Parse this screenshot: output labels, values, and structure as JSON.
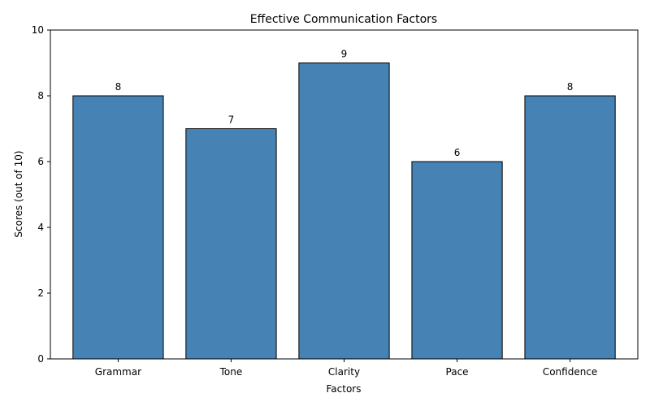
{
  "chart_data": {
    "type": "bar",
    "title": "Effective Communication Factors",
    "xlabel": "Factors",
    "ylabel": "Scores (out of 10)",
    "categories": [
      "Grammar",
      "Tone",
      "Clarity",
      "Pace",
      "Confidence"
    ],
    "values": [
      8,
      7,
      9,
      6,
      8
    ],
    "data_labels": [
      "8",
      "7",
      "9",
      "6",
      "8"
    ],
    "ylim": [
      0,
      10
    ],
    "yticks": [
      0,
      2,
      4,
      6,
      8,
      10
    ],
    "ytick_labels": [
      "0",
      "2",
      "4",
      "6",
      "8",
      "10"
    ],
    "grid": false,
    "legend": "none",
    "colors": {
      "bar_fill": "#4682b4",
      "bar_edge": "#000000",
      "axis": "#000000"
    }
  }
}
